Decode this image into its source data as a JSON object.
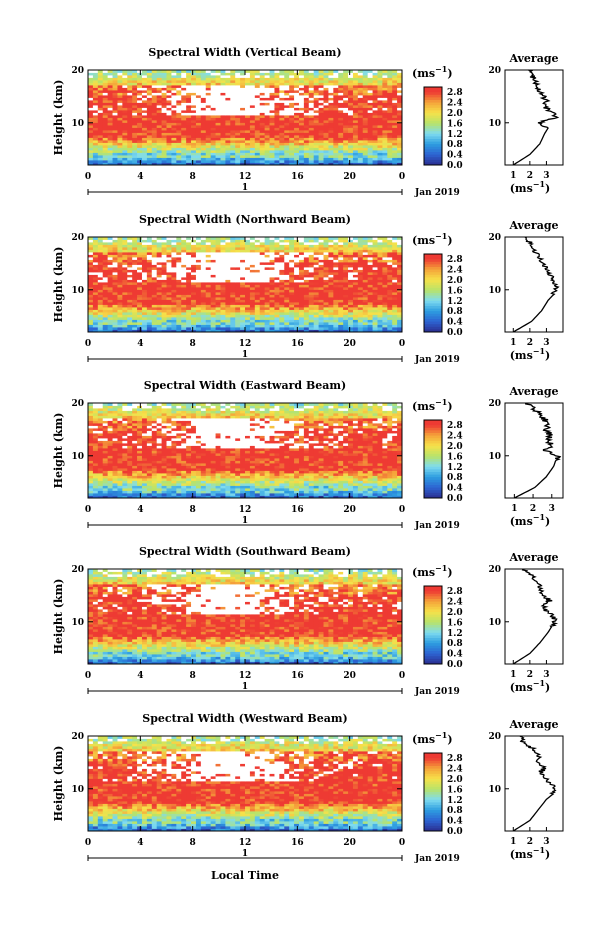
{
  "figure": {
    "x_axis_label": "Local Time",
    "date_label": "Jan 2019",
    "day_label": "1",
    "colorbar_unit": "(ms",
    "colorbar_unit_exp": "−1",
    "avg_unit": "(ms",
    "avg_unit_exp": "−1",
    "y_axis_label": "Height (km)",
    "colorbar_ticks": [
      "2.8",
      "2.4",
      "2.0",
      "1.6",
      "1.2",
      "0.8",
      "0.4",
      "0.0"
    ],
    "colors": {
      "low": "#2b2d8f",
      "mid_blue": "#2d9de0",
      "cyan": "#7fdcf0",
      "green": "#b7e36a",
      "yellow": "#f6e24a",
      "orange": "#f5a43a",
      "red": "#ee3a33",
      "white": "#ffffff"
    }
  },
  "chart_data": [
    {
      "type": "heatmap",
      "title": "Spectral Width (Vertical Beam)",
      "xlabel": "",
      "ylabel": "Height (km)",
      "xlim": [
        0,
        24
      ],
      "ylim": [
        2,
        20
      ],
      "xticks": [
        "0",
        "4",
        "8",
        "12",
        "16",
        "20",
        "0"
      ],
      "yticks": [
        "20",
        "10"
      ],
      "colorbar": {
        "label": "(ms−1)",
        "range": [
          0.0,
          3.0
        ]
      },
      "average_profile": {
        "title": "Average",
        "xlabel": "(ms−1)",
        "xticks": [
          "1",
          "2",
          "3"
        ],
        "xlim": [
          0.5,
          4
        ],
        "height": [
          2,
          4,
          6,
          8,
          9,
          10,
          11,
          12,
          13,
          14,
          15,
          16,
          17,
          18,
          19,
          20
        ],
        "value": [
          1.0,
          2.0,
          2.6,
          2.9,
          3.1,
          2.5,
          3.6,
          3.3,
          2.9,
          3.0,
          2.8,
          2.6,
          2.5,
          2.3,
          2.1,
          1.9
        ]
      }
    },
    {
      "type": "heatmap",
      "title": "Spectral Width (Northward Beam)",
      "xlabel": "",
      "ylabel": "Height (km)",
      "xlim": [
        0,
        24
      ],
      "ylim": [
        2,
        20
      ],
      "xticks": [
        "0",
        "4",
        "8",
        "12",
        "16",
        "20",
        "0"
      ],
      "yticks": [
        "20",
        "10"
      ],
      "colorbar": {
        "label": "(ms−1)",
        "range": [
          0.0,
          3.0
        ]
      },
      "average_profile": {
        "title": "Average",
        "xlabel": "(ms−1)",
        "xticks": [
          "1",
          "2",
          "3"
        ],
        "xlim": [
          0.5,
          4
        ],
        "height": [
          2,
          4,
          6,
          8,
          9,
          10,
          11,
          12,
          13,
          14,
          15,
          16,
          17,
          18,
          19,
          20
        ],
        "value": [
          1.0,
          2.1,
          2.7,
          3.1,
          3.4,
          3.5,
          3.6,
          3.4,
          3.2,
          3.0,
          2.8,
          2.6,
          2.4,
          2.2,
          2.0,
          1.7
        ]
      }
    },
    {
      "type": "heatmap",
      "title": "Spectral Width (Eastward Beam)",
      "xlabel": "",
      "ylabel": "Height (km)",
      "xlim": [
        0,
        24
      ],
      "ylim": [
        2,
        20
      ],
      "xticks": [
        "0",
        "4",
        "8",
        "12",
        "16",
        "20",
        "0"
      ],
      "yticks": [
        "20",
        "10"
      ],
      "colorbar": {
        "label": "(ms−1)",
        "range": [
          0.0,
          3.0
        ]
      },
      "average_profile": {
        "title": "Average",
        "xlabel": "(ms−1)",
        "xticks": [
          "1",
          "2",
          "3"
        ],
        "xlim": [
          0.5,
          3.6
        ],
        "height": [
          2,
          4,
          6,
          8,
          9,
          10,
          11,
          12,
          13,
          14,
          15,
          16,
          17,
          18,
          19,
          20
        ],
        "value": [
          1.0,
          2.1,
          2.7,
          3.1,
          3.2,
          3.3,
          2.6,
          3.0,
          2.8,
          2.9,
          2.7,
          2.8,
          2.6,
          2.3,
          2.0,
          1.6
        ]
      }
    },
    {
      "type": "heatmap",
      "title": "Spectral Width (Southward Beam)",
      "xlabel": "",
      "ylabel": "Height (km)",
      "xlim": [
        0,
        24
      ],
      "ylim": [
        2,
        20
      ],
      "xticks": [
        "0",
        "4",
        "8",
        "12",
        "16",
        "20",
        "0"
      ],
      "yticks": [
        "20",
        "10"
      ],
      "colorbar": {
        "label": "(ms−1)",
        "range": [
          0.0,
          3.0
        ]
      },
      "average_profile": {
        "title": "Average",
        "xlabel": "(ms−1)",
        "xticks": [
          "1",
          "2",
          "3"
        ],
        "xlim": [
          0.5,
          4
        ],
        "height": [
          2,
          4,
          6,
          8,
          9,
          10,
          11,
          12,
          13,
          14,
          15,
          16,
          17,
          18,
          19,
          20
        ],
        "value": [
          1.0,
          2.0,
          2.6,
          3.1,
          3.3,
          3.5,
          3.4,
          3.0,
          2.9,
          3.2,
          2.8,
          2.7,
          2.6,
          2.3,
          2.0,
          1.6
        ]
      }
    },
    {
      "type": "heatmap",
      "title": "Spectral Width (Westward Beam)",
      "xlabel": "Local Time",
      "ylabel": "Height (km)",
      "xlim": [
        0,
        24
      ],
      "ylim": [
        2,
        20
      ],
      "xticks": [
        "0",
        "4",
        "8",
        "12",
        "16",
        "20",
        "0"
      ],
      "yticks": [
        "20",
        "10"
      ],
      "colorbar": {
        "label": "(ms−1)",
        "range": [
          0.0,
          3.0
        ]
      },
      "average_profile": {
        "title": "Average",
        "xlabel": "(ms−1)",
        "xticks": [
          "1",
          "2",
          "3"
        ],
        "xlim": [
          0.5,
          4
        ],
        "height": [
          2,
          4,
          6,
          8,
          9,
          10,
          11,
          12,
          13,
          14,
          15,
          16,
          17,
          18,
          19,
          20
        ],
        "value": [
          1.0,
          2.0,
          2.5,
          3.0,
          3.4,
          3.6,
          3.3,
          2.9,
          2.6,
          2.9,
          2.5,
          2.6,
          2.4,
          2.0,
          1.6,
          1.4
        ]
      }
    }
  ]
}
